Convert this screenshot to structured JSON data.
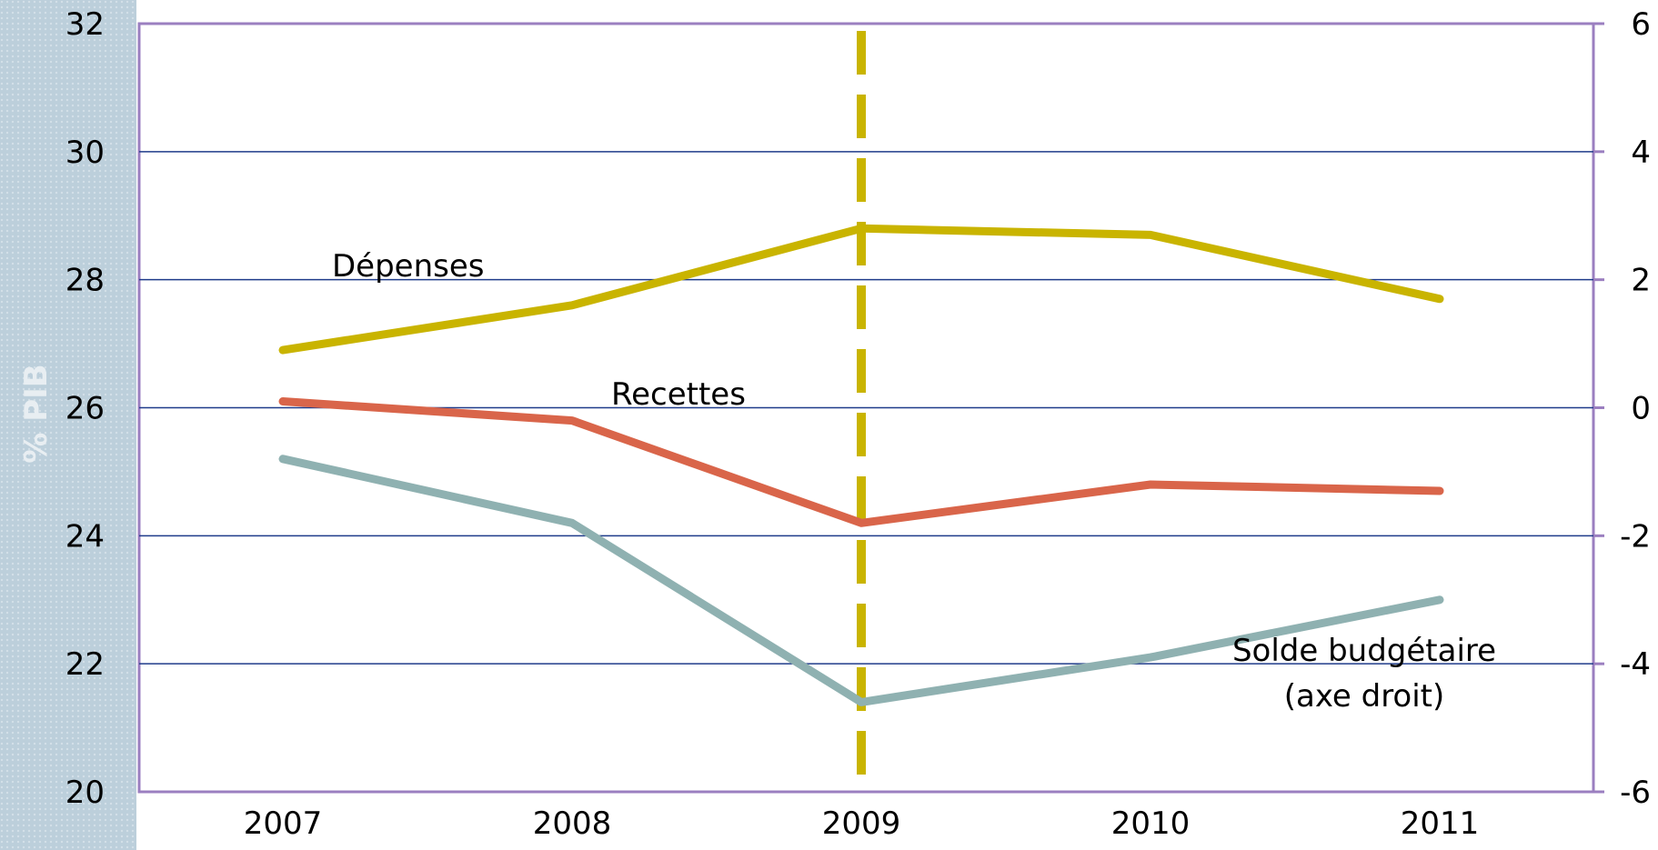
{
  "chart_data": {
    "type": "line",
    "categories": [
      "2007",
      "2008",
      "2009",
      "2010",
      "2011"
    ],
    "ylabel": "% PIB",
    "y_left": {
      "ylim": [
        20,
        32
      ],
      "ticks": [
        "20",
        "22",
        "24",
        "26",
        "28",
        "30",
        "32"
      ]
    },
    "y_right": {
      "ylim": [
        -6,
        6
      ],
      "ticks": [
        "-6",
        "-4",
        "-2",
        "0",
        "2",
        "4",
        "6"
      ]
    },
    "series": [
      {
        "name": "Dépenses",
        "axis": "left",
        "color": "#c9b400",
        "values": [
          26.9,
          27.6,
          28.8,
          28.7,
          27.7
        ]
      },
      {
        "name": "Recettes",
        "axis": "left",
        "color": "#d9654a",
        "values": [
          26.1,
          25.8,
          24.2,
          24.8,
          24.7
        ]
      },
      {
        "name": "Solde budgétaire",
        "axis": "right",
        "color": "#8fb1b1",
        "values": [
          -0.8,
          -1.8,
          -4.6,
          -3.9,
          -3.0
        ]
      }
    ],
    "vline": {
      "category": "2009",
      "color": "#c9b400",
      "style": "dashed"
    },
    "grid": true,
    "annotations": {
      "depenses": "Dépenses",
      "recettes": "Recettes",
      "solde_line1": "Solde budgétaire",
      "solde_line2": "(axe droit)"
    },
    "colors": {
      "plot_border": "#9b7fc0",
      "grid": "#1f3b8a",
      "side_strip": "#bccfdb"
    }
  }
}
